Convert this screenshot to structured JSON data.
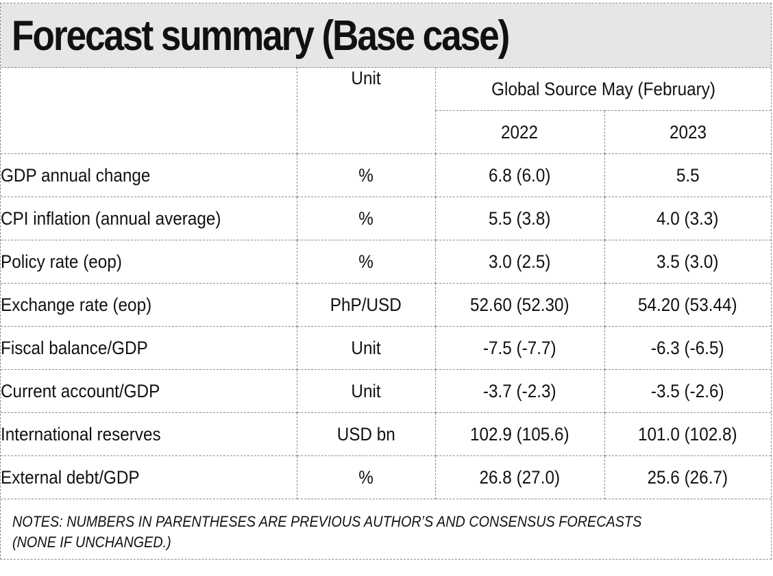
{
  "title": "Forecast summary (Base case)",
  "header": {
    "col_unit": "Unit",
    "col_group": "Global Source May (February)",
    "year_1": "2022",
    "year_2": "2023"
  },
  "rows": [
    {
      "indicator": "GDP annual change",
      "unit": "%",
      "y2022": "6.8 (6.0)",
      "y2023": "5.5"
    },
    {
      "indicator": "CPI inflation (annual average)",
      "unit": "%",
      "y2022": "5.5 (3.8)",
      "y2023": "4.0 (3.3)"
    },
    {
      "indicator": "Policy rate (eop)",
      "unit": "%",
      "y2022": "3.0 (2.5)",
      "y2023": "3.5 (3.0)"
    },
    {
      "indicator": "Exchange rate (eop)",
      "unit": "PhP/USD",
      "y2022": "52.60 (52.30)",
      "y2023": "54.20 (53.44)"
    },
    {
      "indicator": "Fiscal balance/GDP",
      "unit": "Unit",
      "y2022": "-7.5 (-7.7)",
      "y2023": "-6.3 (-6.5)"
    },
    {
      "indicator": "Current account/GDP",
      "unit": "Unit",
      "y2022": "-3.7 (-2.3)",
      "y2023": "-3.5 (-2.6)"
    },
    {
      "indicator": "International reserves",
      "unit": "USD bn",
      "y2022": "102.9 (105.6)",
      "y2023": "101.0 (102.8)"
    },
    {
      "indicator": "External debt/GDP",
      "unit": "%",
      "y2022": "26.8 (27.0)",
      "y2023": "25.6 (26.7)"
    }
  ],
  "notes_line_1": "NOTES: NUMBERS IN PARENTHESES ARE PREVIOUS AUTHOR’S AND CONSENSUS FORECASTS",
  "notes_line_2": "(NONE IF UNCHANGED.)"
}
